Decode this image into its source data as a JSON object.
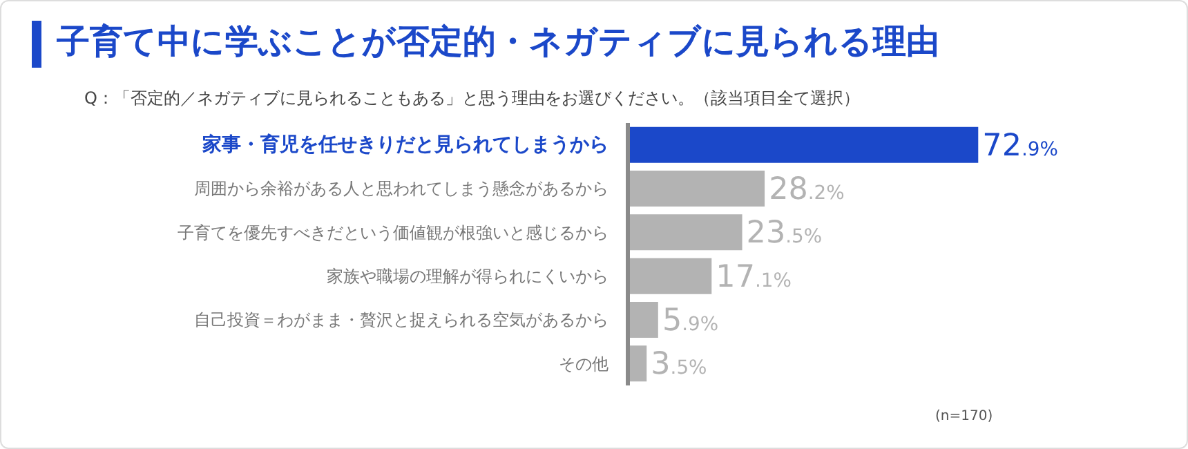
{
  "chart_data": {
    "type": "bar",
    "orientation": "horizontal",
    "title": "子育て中に学ぶことが否定的・ネガティブに見られる理由",
    "subtitle": "Q：「否定的／ネガティブに見られることもある」と思う理由をお選びください。（該当項目全て選択）",
    "categories": [
      "家事・育児を任せきりだと見られてしまうから",
      "周囲から余裕がある人と思われてしまう懸念があるから",
      "子育てを優先すべきだという価値観が根強いと感じるから",
      "家族や職場の理解が得られにくいから",
      "自己投資＝わがまま・贅沢と捉えられる空気があるから",
      "その他"
    ],
    "values": [
      72.9,
      28.2,
      23.5,
      17.1,
      5.9,
      3.5
    ],
    "value_labels": [
      "72.9%",
      "28.2%",
      "23.5%",
      "17.1%",
      "5.9%",
      "3.5%"
    ],
    "colors": [
      "#1b48c9",
      "#b3b3b3",
      "#b3b3b3",
      "#b3b3b3",
      "#b3b3b3",
      "#b3b3b3"
    ],
    "annotations": [
      "(n=170)"
    ]
  }
}
